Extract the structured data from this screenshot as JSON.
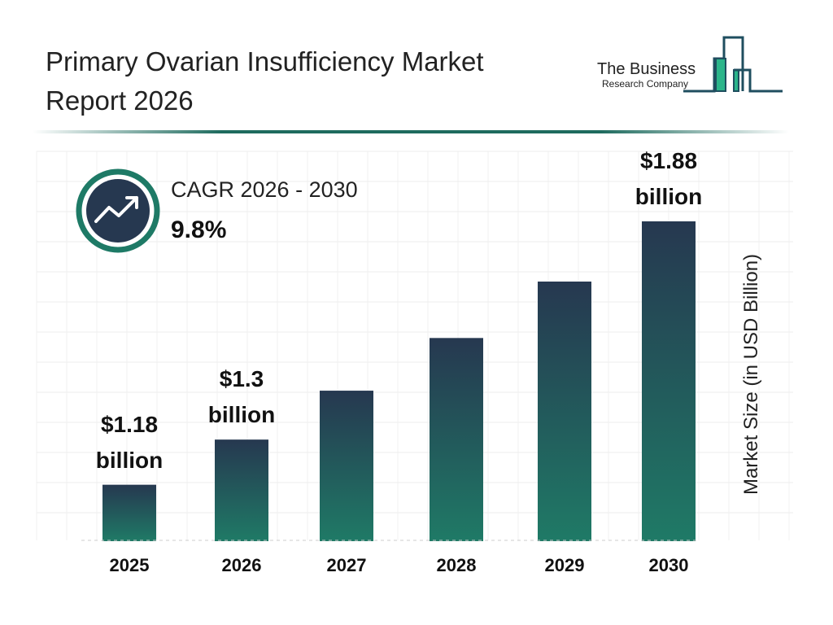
{
  "header": {
    "title": "Primary Ovarian Insufficiency Market Report 2026"
  },
  "logo": {
    "line1": "The Business",
    "line2": "Research Company",
    "color": "#1f4e5f",
    "accent": "#2bb58a"
  },
  "cagr": {
    "label": "CAGR 2026 - 2030",
    "value": "9.8%",
    "icon": "trending-up-icon"
  },
  "chart_data": {
    "type": "bar",
    "categories": [
      "2025",
      "2026",
      "2027",
      "2028",
      "2029",
      "2030"
    ],
    "values": [
      1.18,
      1.3,
      1.43,
      1.57,
      1.72,
      1.88
    ],
    "data_labels": [
      "$1.18 billion",
      "$1.3 billion",
      "",
      "",
      "",
      "$1.88 billion"
    ],
    "ylabel": "Market Size (in USD Billion)",
    "xlabel": "",
    "grid": true,
    "colors": {
      "bar_top": "#263850",
      "bar_bottom": "#1f7a66"
    }
  }
}
